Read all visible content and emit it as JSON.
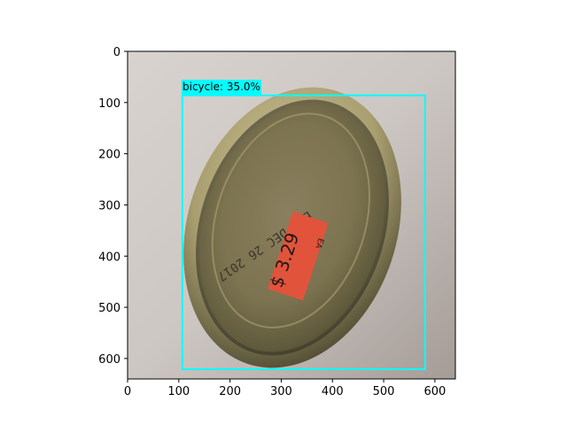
{
  "detection": {
    "label": "bicycle: 35.0%",
    "box_color": "#00ffff",
    "box_x0": 107,
    "box_y0": 86,
    "box_x1": 581,
    "box_y1": 621
  },
  "image": {
    "description_icon": "photo-of-metal-can-lid",
    "lid_print": "EXP DEC 26 2017",
    "price_sticker": "$ 3.29",
    "price_suffix": "EA",
    "sticker_color": "#e2533c"
  },
  "axes": {
    "x_ticks": [
      "0",
      "100",
      "200",
      "300",
      "400",
      "500",
      "600"
    ],
    "y_ticks": [
      "0",
      "100",
      "200",
      "300",
      "400",
      "500",
      "600"
    ],
    "xlim": [
      0,
      640
    ],
    "ylim": [
      640,
      0
    ]
  }
}
